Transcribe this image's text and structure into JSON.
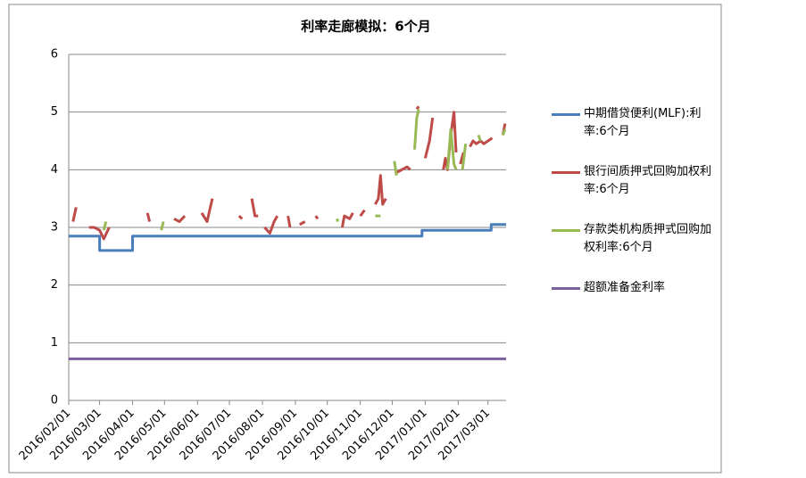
{
  "chart_data": {
    "type": "line",
    "title": "利率走廊模拟：6个月",
    "xlim": [
      "2016/02/01",
      "2017/03/18"
    ],
    "xticks": [
      "2016/02/01",
      "2016/03/01",
      "2016/04/01",
      "2016/05/01",
      "2016/06/01",
      "2016/07/01",
      "2016/08/01",
      "2016/09/01",
      "2016/10/01",
      "2016/11/01",
      "2016/12/01",
      "2017/01/01",
      "2017/02/01",
      "2017/03/01"
    ],
    "ylim": [
      0,
      6
    ],
    "yticks": [
      0,
      1,
      2,
      3,
      4,
      5,
      6
    ],
    "grid": true,
    "series": [
      {
        "name": "中期借贷便利(MLF):利率:6个月",
        "color": "#4a7ebb",
        "x": [
          "2016/02/01",
          "2016/03/01",
          "2016/03/01",
          "2016/04/01",
          "2016/04/01",
          "2016/12/29",
          "2016/12/29",
          "2017/03/04",
          "2017/03/04",
          "2017/03/18"
        ],
        "values": [
          2.85,
          2.85,
          2.6,
          2.6,
          2.85,
          2.85,
          2.95,
          2.95,
          3.05,
          3.05
        ]
      },
      {
        "name": "银行间质押式回购加权利率:6个月",
        "color": "#be4b48",
        "x": [
          "2016/02/05",
          "2016/02/08",
          "2016/02/10",
          "2016/02/20",
          "2016/02/25",
          "2016/03/01",
          "2016/03/05",
          "2016/03/10",
          "2016/03/12",
          "2016/04/15",
          "2016/04/17",
          "2016/04/20",
          "2016/05/10",
          "2016/05/15",
          "2016/05/20",
          "2016/05/25",
          "2016/06/05",
          "2016/06/10",
          "2016/06/15",
          "2016/06/20",
          "2016/07/10",
          "2016/07/13",
          "2016/07/16",
          "2016/07/22",
          "2016/07/25",
          "2016/07/28",
          "2016/07/30",
          "2016/08/03",
          "2016/08/08",
          "2016/08/12",
          "2016/08/15",
          "2016/08/18",
          "2016/08/25",
          "2016/08/27",
          "2016/08/30",
          "2016/09/05",
          "2016/09/10",
          "2016/09/14",
          "2016/09/20",
          "2016/09/22",
          "2016/09/25",
          "2016/10/15",
          "2016/10/17",
          "2016/10/22",
          "2016/10/25",
          "2016/10/28",
          "2016/11/01",
          "2016/11/05",
          "2016/11/08",
          "2016/11/15",
          "2016/11/18",
          "2016/11/20",
          "2016/11/22",
          "2016/11/25",
          "2016/11/28",
          "2016/12/05",
          "2016/12/10",
          "2016/12/15",
          "2016/12/18",
          "2016/12/20",
          "2016/12/24",
          "2016/12/26",
          "2016/12/28",
          "2017/01/01",
          "2017/01/05",
          "2017/01/08",
          "2017/01/12",
          "2017/01/18",
          "2017/01/20",
          "2017/01/22",
          "2017/01/25",
          "2017/01/28",
          "2017/01/30",
          "2017/02/01",
          "2017/02/03",
          "2017/02/06",
          "2017/02/09",
          "2017/02/12",
          "2017/02/15",
          "2017/02/18",
          "2017/02/22",
          "2017/02/25",
          "2017/03/01",
          "2017/03/05",
          "2017/03/10",
          "2017/03/15",
          "2017/03/17"
        ],
        "values": [
          3.1,
          3.35,
          null,
          3.0,
          3.0,
          2.95,
          2.8,
          3.0,
          null,
          3.25,
          3.1,
          null,
          3.15,
          3.1,
          3.2,
          null,
          3.25,
          3.1,
          3.5,
          null,
          3.2,
          3.15,
          null,
          3.5,
          3.2,
          3.2,
          null,
          3.0,
          2.9,
          3.1,
          3.2,
          null,
          3.2,
          3.0,
          null,
          3.05,
          3.1,
          null,
          3.2,
          3.15,
          null,
          3.0,
          3.2,
          3.15,
          3.25,
          null,
          3.2,
          3.3,
          null,
          3.4,
          3.5,
          3.9,
          3.4,
          3.5,
          null,
          3.95,
          4.0,
          4.05,
          4.0,
          null,
          5.05,
          5.1,
          null,
          4.2,
          4.5,
          4.9,
          null,
          4.0,
          4.2,
          4.0,
          4.6,
          5.0,
          4.3,
          null,
          4.1,
          4.3,
          null,
          4.4,
          4.5,
          4.45,
          4.5,
          4.45,
          4.5,
          4.55,
          null,
          4.6,
          4.8
        ]
      },
      {
        "name": "存款类机构质押式回购加权利率:6个月",
        "color": "#98b954",
        "x": [
          "2016/03/05",
          "2016/03/07",
          "2016/03/09",
          "2016/04/28",
          "2016/04/30",
          "2016/05/02",
          "2016/10/10",
          "2016/10/11",
          "2016/10/13",
          "2016/11/15",
          "2016/11/20",
          "2016/11/22",
          "2016/12/03",
          "2016/12/05",
          "2016/12/07",
          "2016/12/22",
          "2016/12/24",
          "2016/12/26",
          "2016/12/28",
          "2017/01/22",
          "2017/01/25",
          "2017/01/28",
          "2017/01/30",
          "2017/02/01",
          "2017/02/05",
          "2017/02/08",
          "2017/02/10",
          "2017/02/20",
          "2017/02/22",
          "2017/02/24",
          "2017/03/15",
          "2017/03/17"
        ],
        "values": [
          2.95,
          3.1,
          null,
          2.95,
          3.1,
          null,
          3.15,
          3.1,
          null,
          3.2,
          3.2,
          null,
          4.15,
          3.9,
          null,
          4.35,
          4.9,
          5.05,
          null,
          4.0,
          4.7,
          4.1,
          4.0,
          null,
          4.0,
          4.45,
          null,
          4.6,
          4.5,
          null,
          4.6,
          4.7
        ]
      },
      {
        "name": "超额准备金利率",
        "color": "#7d60a0",
        "x": [
          "2016/02/01",
          "2017/03/18"
        ],
        "values": [
          0.72,
          0.72
        ]
      }
    ]
  }
}
